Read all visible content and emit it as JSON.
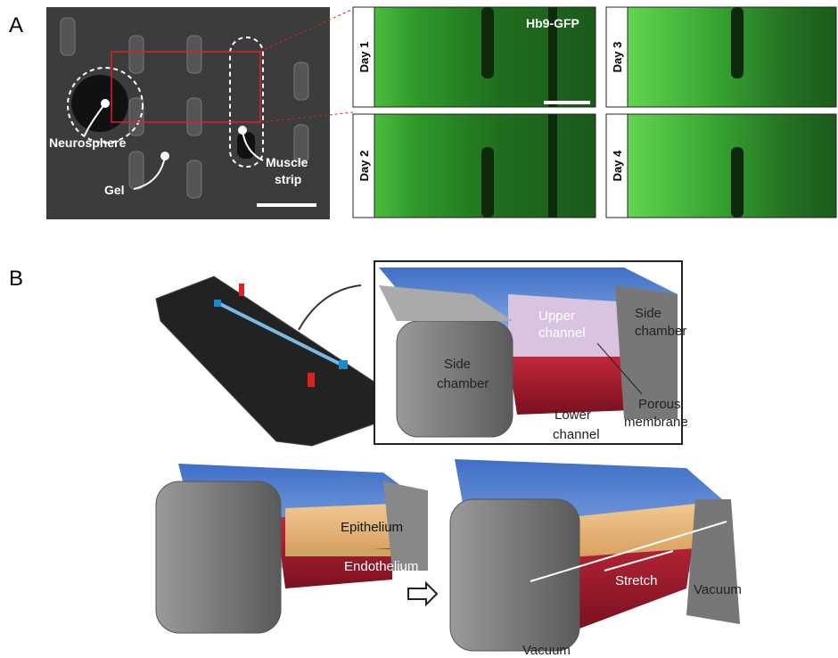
{
  "panel_a": {
    "label": "A",
    "micrograph": {
      "neurosphere": "Neurosphere",
      "gel": "Gel",
      "muscle_strip": [
        "Muscle",
        "strip"
      ]
    },
    "fluorescence": {
      "marker": "Hb9-GFP",
      "days": [
        "Day 1",
        "Day 2",
        "Day 3",
        "Day 4"
      ]
    }
  },
  "panel_b": {
    "label": "B",
    "chip_detail": {
      "upper_channel": [
        "Upper",
        "channel"
      ],
      "side_chamber_right": [
        "Side",
        "chamber"
      ],
      "side_chamber_left": [
        "Side",
        "chamber"
      ],
      "porous_membrane": [
        "Porous",
        "membrane"
      ],
      "lower_channel": [
        "Lower",
        "channel"
      ]
    },
    "static_model": {
      "epithelium": "Epithelium",
      "endothelium": "Endothelium"
    },
    "stretched_model": {
      "stretch": "Stretch",
      "vacuum_right": "Vacuum",
      "vacuum_left": "Vacuum"
    }
  }
}
